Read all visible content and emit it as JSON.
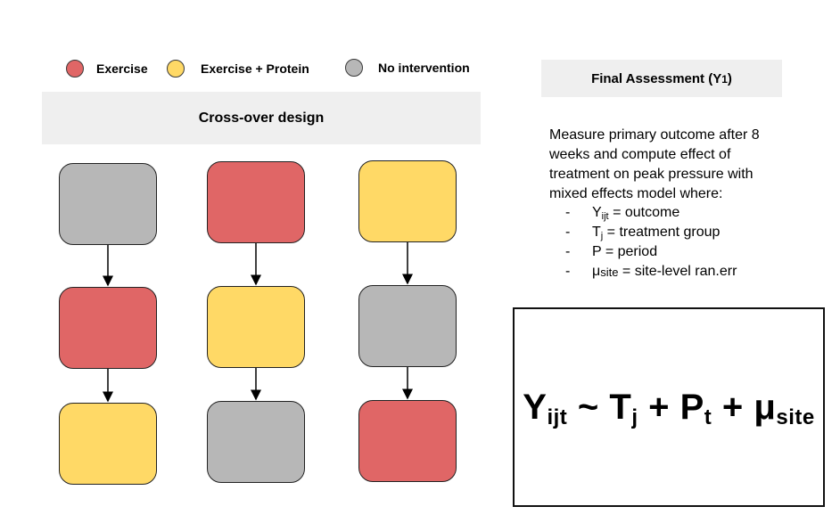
{
  "legend": [
    {
      "label": "Exercise",
      "color": "#e06666"
    },
    {
      "label": "Exercise + Protein",
      "color": "#ffd966"
    },
    {
      "label": "No intervention",
      "color": "#b7b7b7"
    }
  ],
  "crossover": {
    "title": "Cross-over design",
    "columns": [
      [
        "No intervention",
        "Exercise",
        "Exercise + Protein"
      ],
      [
        "Exercise",
        "Exercise + Protein",
        "No intervention"
      ],
      [
        "Exercise + Protein",
        "No intervention",
        "Exercise"
      ]
    ]
  },
  "assessment": {
    "title_main": "Final Assessment (Y",
    "title_sub": "1",
    "title_end": ")",
    "description": "Measure primary outcome after 8 weeks and compute effect of treatment on peak pressure with mixed effects model where:",
    "items": [
      {
        "dash": "-",
        "symbol": "Y",
        "sub": "ijt",
        "text": " = outcome"
      },
      {
        "dash": "-",
        "symbol": "T",
        "sub": "j",
        "text": " = treatment group"
      },
      {
        "dash": "-",
        "symbol": "P",
        "sub": "",
        "text": " = period"
      },
      {
        "dash": "-",
        "symbol": "μ",
        "sub": "site",
        "text": " = site-level ran.err"
      }
    ]
  },
  "formula": {
    "y": "Y",
    "y_sub": "ijt",
    "tilde": " ~ ",
    "t": "T",
    "t_sub": "j",
    "plus1": " + ",
    "p": "P",
    "p_sub": "t",
    "plus2": " + ",
    "mu": "μ",
    "mu_sub": "site"
  }
}
